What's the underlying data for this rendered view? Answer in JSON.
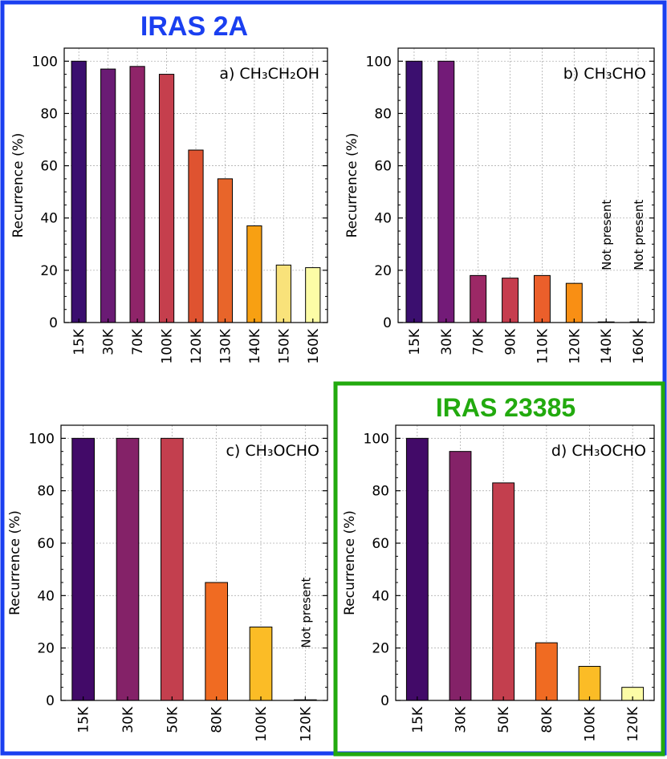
{
  "frames": {
    "iras2a": {
      "title": "IRAS 2A",
      "color": "#1a3ff0"
    },
    "iras23385": {
      "title": "IRAS 23385",
      "color": "#22aa0e"
    }
  },
  "not_present_label": "Not present",
  "chart_data": [
    {
      "type": "bar",
      "panel_label": "a) CH₃CH₂OH",
      "molecule": "CH3CH2OH",
      "source": "IRAS 2A",
      "categories": [
        "15K",
        "30K",
        "70K",
        "100K",
        "120K",
        "130K",
        "140K",
        "150K",
        "160K"
      ],
      "values": [
        100,
        97,
        98,
        95,
        66,
        55,
        37,
        22,
        21
      ],
      "colors": [
        "#3b0f6f",
        "#6a1b74",
        "#8f2469",
        "#c53f4d",
        "#df5330",
        "#e8652a",
        "#f8a012",
        "#f9e27a",
        "#fcfca6"
      ],
      "not_present": [],
      "ylabel": "Recurrence (%)",
      "xlabel": "",
      "ylim": [
        0,
        105
      ],
      "yticks": [
        0,
        20,
        40,
        60,
        80,
        100
      ],
      "grid": true
    },
    {
      "type": "bar",
      "panel_label": "b) CH₃CHO",
      "molecule": "CH3CHO",
      "source": "IRAS 2A",
      "categories": [
        "15K",
        "30K",
        "70K",
        "90K",
        "110K",
        "120K",
        "140K",
        "160K"
      ],
      "values": [
        100,
        100,
        18,
        17,
        18,
        15,
        0,
        0
      ],
      "colors": [
        "#3b0f6f",
        "#731b78",
        "#9c2866",
        "#c63d4e",
        "#eb5f2b",
        "#f98f14",
        "#f3d440",
        "#fcfca6"
      ],
      "not_present": [
        "140K",
        "160K"
      ],
      "ylabel": "Recurrence (%)",
      "xlabel": "",
      "ylim": [
        0,
        105
      ],
      "yticks": [
        0,
        20,
        40,
        60,
        80,
        100
      ],
      "grid": true
    },
    {
      "type": "bar",
      "panel_label": "c) CH₃OCHO",
      "molecule": "CH3OCHO",
      "source": "IRAS 2A",
      "categories": [
        "15K",
        "30K",
        "50K",
        "80K",
        "100K",
        "120K"
      ],
      "values": [
        100,
        100,
        100,
        45,
        28,
        0
      ],
      "colors": [
        "#420a68",
        "#842268",
        "#c33f4e",
        "#f06b22",
        "#fbbc26",
        "#fcfca6"
      ],
      "not_present": [
        "120K"
      ],
      "ylabel": "Recurrence (%)",
      "xlabel": "",
      "ylim": [
        0,
        105
      ],
      "yticks": [
        0,
        20,
        40,
        60,
        80,
        100
      ],
      "grid": true
    },
    {
      "type": "bar",
      "panel_label": "d) CH₃OCHO",
      "molecule": "CH3OCHO",
      "source": "IRAS 23385",
      "categories": [
        "15K",
        "30K",
        "50K",
        "80K",
        "100K",
        "120K"
      ],
      "values": [
        100,
        95,
        83,
        22,
        13,
        5
      ],
      "colors": [
        "#420a68",
        "#842268",
        "#c33f4e",
        "#f06b22",
        "#fbbc26",
        "#fcfca6"
      ],
      "not_present": [],
      "ylabel": "Recurrence (%)",
      "xlabel": "",
      "ylim": [
        0,
        105
      ],
      "yticks": [
        0,
        20,
        40,
        60,
        80,
        100
      ],
      "grid": true
    }
  ]
}
